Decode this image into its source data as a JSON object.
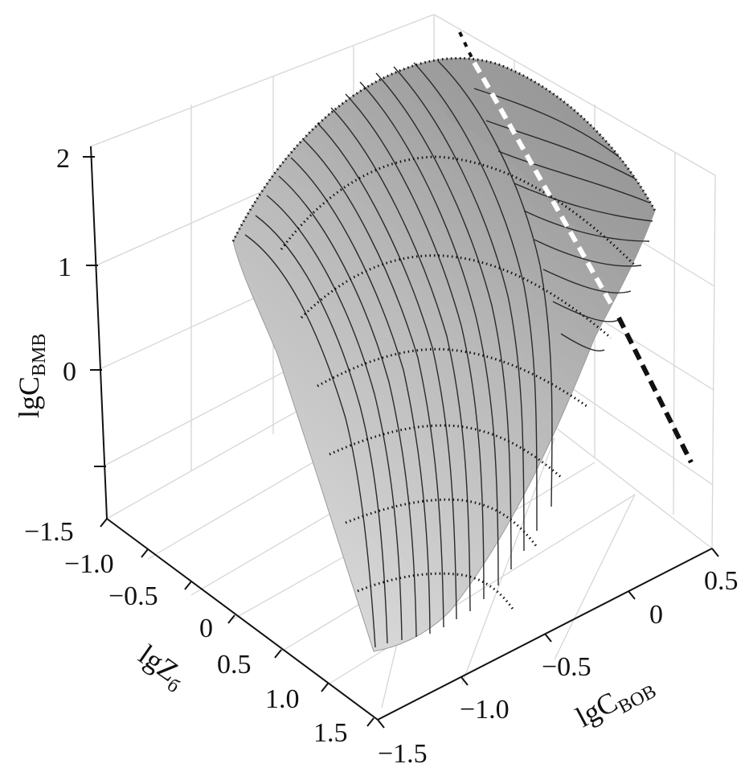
{
  "chart_data": {
    "type": "surface-3d",
    "axes": {
      "x": {
        "title_main": "lgC",
        "title_sub": "BOB",
        "ticks": [
          "−1.5",
          "−1.0",
          "−0.5",
          "0",
          "0.5"
        ],
        "tick_values": [
          -1.5,
          -1.0,
          -0.5,
          0,
          0.5
        ]
      },
      "y": {
        "title_main": "lgZ",
        "title_sub": "б",
        "ticks": [
          "−1.5",
          "−1.0",
          "−0.5",
          "0",
          "0.5",
          "1.0",
          "1.5"
        ],
        "tick_values": [
          -1.5,
          -1.0,
          -0.5,
          0,
          0.5,
          1.0,
          1.5
        ]
      },
      "z": {
        "title_main": "lgC",
        "title_sub": "BMB",
        "ticks": [
          "0",
          "1",
          "2"
        ],
        "tick_values": [
          0,
          1,
          2
        ],
        "range": [
          -1.5,
          2
        ]
      }
    },
    "grid": true,
    "colors": {
      "surface_light": "#d9d9d9",
      "surface_dark": "#8f8f8f",
      "contour": "#2a2a2a",
      "dashed_black": "#111111",
      "dashed_white": "#ffffff"
    }
  }
}
